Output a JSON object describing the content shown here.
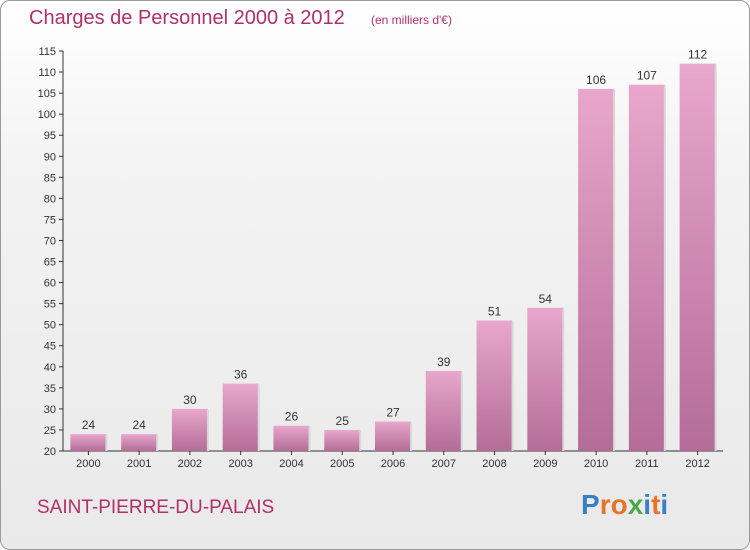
{
  "header": {
    "title": "Charges de Personnel 2000 à 2012",
    "subtitle": "(en milliers d'€)"
  },
  "footer": {
    "commune": "SAINT-PIERRE-DU-PALAIS",
    "logo_text": "Proxiti"
  },
  "colors": {
    "accent": "#b0306a",
    "bar_light": "#e8a7cb",
    "bar_dark": "#b36d98",
    "logo_letters": [
      "#3a7fc4",
      "#e8742a",
      "#e8742a",
      "#4aa84a",
      "#3a7fc4",
      "#e8742a",
      "#3a7fc4"
    ]
  },
  "chart_data": {
    "type": "bar",
    "categories": [
      "2000",
      "2001",
      "2002",
      "2003",
      "2004",
      "2005",
      "2006",
      "2007",
      "2008",
      "2009",
      "2010",
      "2011",
      "2012"
    ],
    "values": [
      24,
      24,
      30,
      36,
      26,
      25,
      27,
      39,
      51,
      54,
      106,
      107,
      112
    ],
    "title": "Charges de Personnel 2000 à 2012",
    "subtitle": "(en milliers d'€)",
    "xlabel": "",
    "ylabel": "",
    "ylim": [
      20,
      115
    ],
    "yticks": [
      20,
      25,
      30,
      35,
      40,
      45,
      50,
      55,
      60,
      65,
      70,
      75,
      80,
      85,
      90,
      95,
      100,
      105,
      110,
      115
    ],
    "grid": false,
    "data_labels": true
  }
}
